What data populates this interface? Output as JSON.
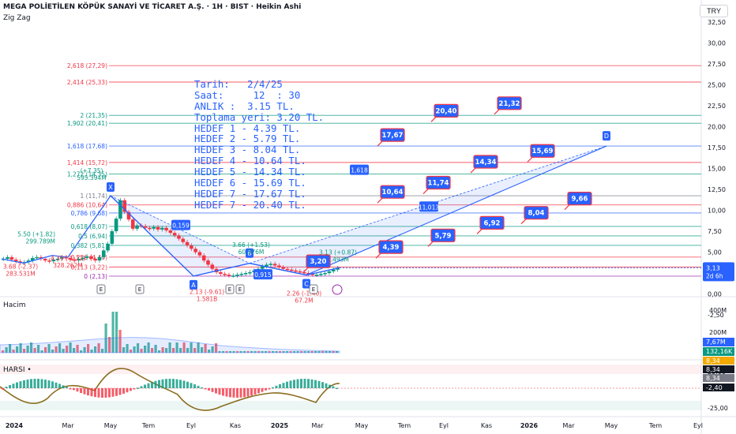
{
  "header": {
    "title": "MEGA POLİETİLEN KÖPÜK SANAYİ VE TİCARET A.Ş. · 1H · BIST · Heikin Ashi",
    "indicator": "Zig Zag",
    "currency": "TRY"
  },
  "panes": {
    "volume_label": "Hacim",
    "harsi_label": "HARSI •"
  },
  "info_box": {
    "lines": [
      "Tarih:   2/4/25",
      "Saat:     12  : 30",
      "ANLIK :  3.15 TL.",
      "Toplama yeri: 3.20 TL.",
      "HEDEF 1 - 4.39 TL.",
      "HEDEF 2 - 5.79 TL.",
      "HEDEF 3 - 8.04 TL.",
      "HEDEF 4 - 10.64 TL.",
      "HEDEF 5 - 14.34 TL.",
      "HEDEF 6 - 15.69 TL.",
      "HEDEF 7 - 17.67 TL.",
      "HEDEF 7 - 20.40 TL."
    ]
  },
  "chart_data": {
    "type": "candlestick",
    "price_axis": {
      "ticks": [
        "32,50",
        "30,00",
        "27,50",
        "25,00",
        "22,50",
        "20,00",
        "17,50",
        "15,00",
        "12,50",
        "10,00",
        "7,50",
        "5,00",
        "2,50",
        "0,00",
        "-2,50"
      ],
      "min": -2.5,
      "max": 32.5
    },
    "volume_axis": {
      "ticks": [
        "400M",
        "200M"
      ]
    },
    "harsi_axis": {
      "ticks": [
        "25,00",
        "-25,00"
      ]
    },
    "time_axis": [
      "2024",
      "Mar",
      "May",
      "Tem",
      "Eyl",
      "Kas",
      "2025",
      "Mar",
      "May",
      "Tem",
      "Eyl",
      "Kas",
      "2026",
      "Mar",
      "May",
      "Tem",
      "Eyl"
    ],
    "last_price": {
      "value": "3,13",
      "countdown": "2d 6h",
      "color": "#2962ff"
    },
    "volume_badges": [
      "7,67M",
      "132,16K"
    ],
    "harsi_badges": [
      "8,34",
      "8,34",
      "8,34",
      "-2,40"
    ],
    "fib_levels": [
      {
        "label": "2,618 (27,29)",
        "value": 27.29,
        "color": "#f23645"
      },
      {
        "label": "2,414 (25,33)",
        "value": 25.33,
        "color": "#f23645"
      },
      {
        "label": "2 (21,35)",
        "value": 21.35,
        "color": "#089981"
      },
      {
        "label": "1,902 (20,41)",
        "value": 20.41,
        "color": "#089981"
      },
      {
        "label": "1,618 (17,68)",
        "value": 17.68,
        "color": "#2962ff"
      },
      {
        "label": "1,414 (15,72)",
        "value": 15.72,
        "color": "#f23645"
      },
      {
        "label": "1,272 (14,35)",
        "value": 14.35,
        "color": "#089981"
      },
      {
        "label": "1 (11,74)",
        "value": 11.74,
        "color": "#787b86"
      },
      {
        "label": "0,886 (10,64)",
        "value": 10.64,
        "color": "#f23645"
      },
      {
        "label": "0,786 (9,68)",
        "value": 9.68,
        "color": "#2962ff"
      },
      {
        "label": "0,618 (8,07)",
        "value": 8.07,
        "color": "#089981"
      },
      {
        "label": "0,5 (6,94)",
        "value": 6.94,
        "color": "#089981"
      },
      {
        "label": "0,382 (5,81)",
        "value": 5.81,
        "color": "#089981"
      },
      {
        "label": "0,236 (4,40)",
        "value": 4.4,
        "color": "#f23645"
      },
      {
        "label": "0,113 (3,22)",
        "value": 3.22,
        "color": "#f23645"
      },
      {
        "label": "0 (2,13)",
        "value": 2.13,
        "color": "#9c27b0"
      }
    ],
    "zigzag_labels": [
      {
        "text": "5.50 (+1.82)",
        "sub": "299.789M",
        "color": "#089981"
      },
      {
        "text": "(+7.35)",
        "sub": "595.394M",
        "color": "#089981"
      },
      {
        "text": "3.68 (-2.37)",
        "sub": "283.531M",
        "color": "#f23645"
      },
      {
        "text": "4.39 (-1.11)",
        "sub": "328.262M",
        "color": "#f23645"
      },
      {
        "text": "2.13 (-9.61)",
        "sub": "1.581B",
        "color": "#f23645"
      },
      {
        "text": "3.66 (+1.53)",
        "sub": "60.976M",
        "color": "#089981"
      },
      {
        "text": "2.26 (-1.40)",
        "sub": "67.2M",
        "color": "#f23645"
      },
      {
        "text": "3.13 (+0.87)",
        "sub": "3.493M",
        "color": "#089981"
      }
    ],
    "xabcd": [
      {
        "name": "X",
        "value": 11.74
      },
      {
        "name": "A",
        "value": 2.13
      },
      {
        "name": "B",
        "value": 3.66
      },
      {
        "name": "C",
        "value": 2.26
      },
      {
        "name": "D",
        "value": 17.68
      }
    ],
    "pattern_values": [
      "1,618",
      "0,159",
      "0,915",
      "11,013"
    ],
    "targets": [
      "3,20",
      "4,39",
      "5,79",
      "6,92",
      "8,04",
      "9,66",
      "10,64",
      "11,74",
      "14,34",
      "15,69",
      "17,67",
      "20,40",
      "21,32"
    ],
    "event_markers": [
      "E",
      "E",
      "E",
      "E",
      "E"
    ]
  }
}
